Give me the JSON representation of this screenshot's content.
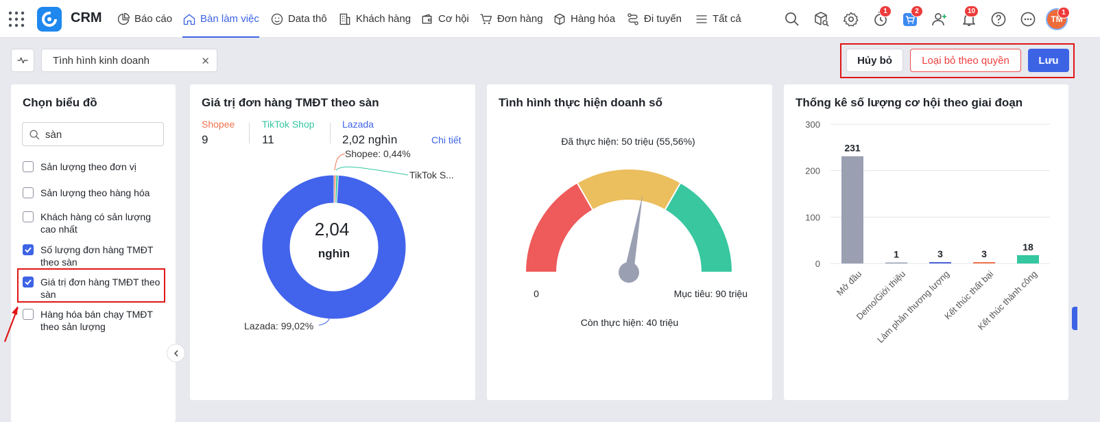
{
  "app": {
    "name": "CRM"
  },
  "nav": {
    "items": [
      {
        "label": "Báo cáo",
        "icon": "pie-chart-icon"
      },
      {
        "label": "Bàn làm việc",
        "icon": "home-icon",
        "active": true
      },
      {
        "label": "Data thô",
        "icon": "smile-icon"
      },
      {
        "label": "Khách hàng",
        "icon": "building-icon"
      },
      {
        "label": "Cơ hội",
        "icon": "wallet-icon"
      },
      {
        "label": "Đơn hàng",
        "icon": "cart-icon"
      },
      {
        "label": "Hàng hóa",
        "icon": "box-icon"
      },
      {
        "label": "Đi tuyến",
        "icon": "route-icon"
      },
      {
        "label": "Tất cả",
        "icon": "menu-icon"
      }
    ],
    "badges": {
      "timer": "1",
      "cart": "2",
      "bell": "10",
      "avatar": "1"
    },
    "avatar_initials": "TM"
  },
  "toolbar": {
    "dashboard_title": "Tình hình kinh doanh",
    "cancel_label": "Hủy bỏ",
    "remove_label": "Loại bỏ theo quyền",
    "save_label": "Lưu"
  },
  "chooser": {
    "title": "Chọn biểu đồ",
    "search_value": "sàn",
    "options": [
      {
        "label": "Sản lượng theo đơn vị",
        "checked": false
      },
      {
        "label": "Sản lượng theo hàng hóa",
        "checked": false
      },
      {
        "label": "Khách hàng có sản lượng cao nhất",
        "checked": false
      },
      {
        "label": "Số lượng đơn hàng TMĐT theo sàn",
        "checked": true
      },
      {
        "label": "Giá trị đơn hàng TMĐT theo sàn",
        "checked": true
      },
      {
        "label": "Hàng hóa bán chạy TMĐT theo sản lượng",
        "checked": false
      }
    ]
  },
  "colors": {
    "accent": "#3d63e5",
    "shopee": "#f0734d",
    "tiktok": "#34c7a0",
    "lazada": "#4263eb",
    "danger": "#e01616"
  },
  "card1": {
    "title": "Giá trị đơn hàng TMĐT theo sàn",
    "detail_label": "Chi tiết",
    "legend": [
      {
        "name": "Shopee",
        "value": "9",
        "color": "#f0734d"
      },
      {
        "name": "TikTok Shop",
        "value": "11",
        "color": "#34c7a0"
      },
      {
        "name": "Lazada",
        "value": "2,02 nghìn",
        "color": "#4263eb"
      }
    ],
    "center_value": "2,04",
    "center_unit": "nghìn",
    "label_shopee": "Shopee: 0,44%",
    "label_tiktok": "TikTok S...",
    "label_lazada": "Lazada: 99,02%"
  },
  "card2": {
    "title": "Tình hình thực hiện doanh số",
    "achieved_label": "Đã thực hiện: 50 triệu (55,56%)",
    "min_label": "0",
    "target_label": "Mục tiêu: 90 triệu",
    "remaining_label": "Còn thực hiện: 40 triệu"
  },
  "card3": {
    "title": "Thống kê số lượng cơ hội theo giai đoạn"
  },
  "chart_data": [
    {
      "type": "pie",
      "title": "Giá trị đơn hàng TMĐT theo sàn",
      "categories": [
        "Shopee",
        "TikTok Shop",
        "Lazada"
      ],
      "values": [
        9,
        11,
        2020
      ],
      "percent": [
        0.44,
        0.54,
        99.02
      ],
      "colors": [
        "#f0734d",
        "#34c7a0",
        "#4263eb"
      ]
    },
    {
      "type": "gauge",
      "title": "Tình hình thực hiện doanh số",
      "value": 50,
      "target": 90,
      "min": 0,
      "bands": [
        {
          "color": "#ef5a5a"
        },
        {
          "color": "#ebbe5e"
        },
        {
          "color": "#38c79f"
        }
      ]
    },
    {
      "type": "bar",
      "title": "Thống kê số lượng cơ hội theo giai đoạn",
      "categories": [
        "Mở đầu",
        "Demo/Giới thiệu",
        "Làm phản thương lượng",
        "Kết thúc thất bại",
        "Kết thúc thành công"
      ],
      "values": [
        231,
        1,
        3,
        3,
        18
      ],
      "colors": [
        "#9aa0b2",
        "#9aa0b2",
        "#4a63d8",
        "#f0734d",
        "#34c7a0"
      ],
      "ylim": [
        0,
        300
      ],
      "yticks": [
        0,
        100,
        200,
        300
      ],
      "grid": true
    }
  ]
}
